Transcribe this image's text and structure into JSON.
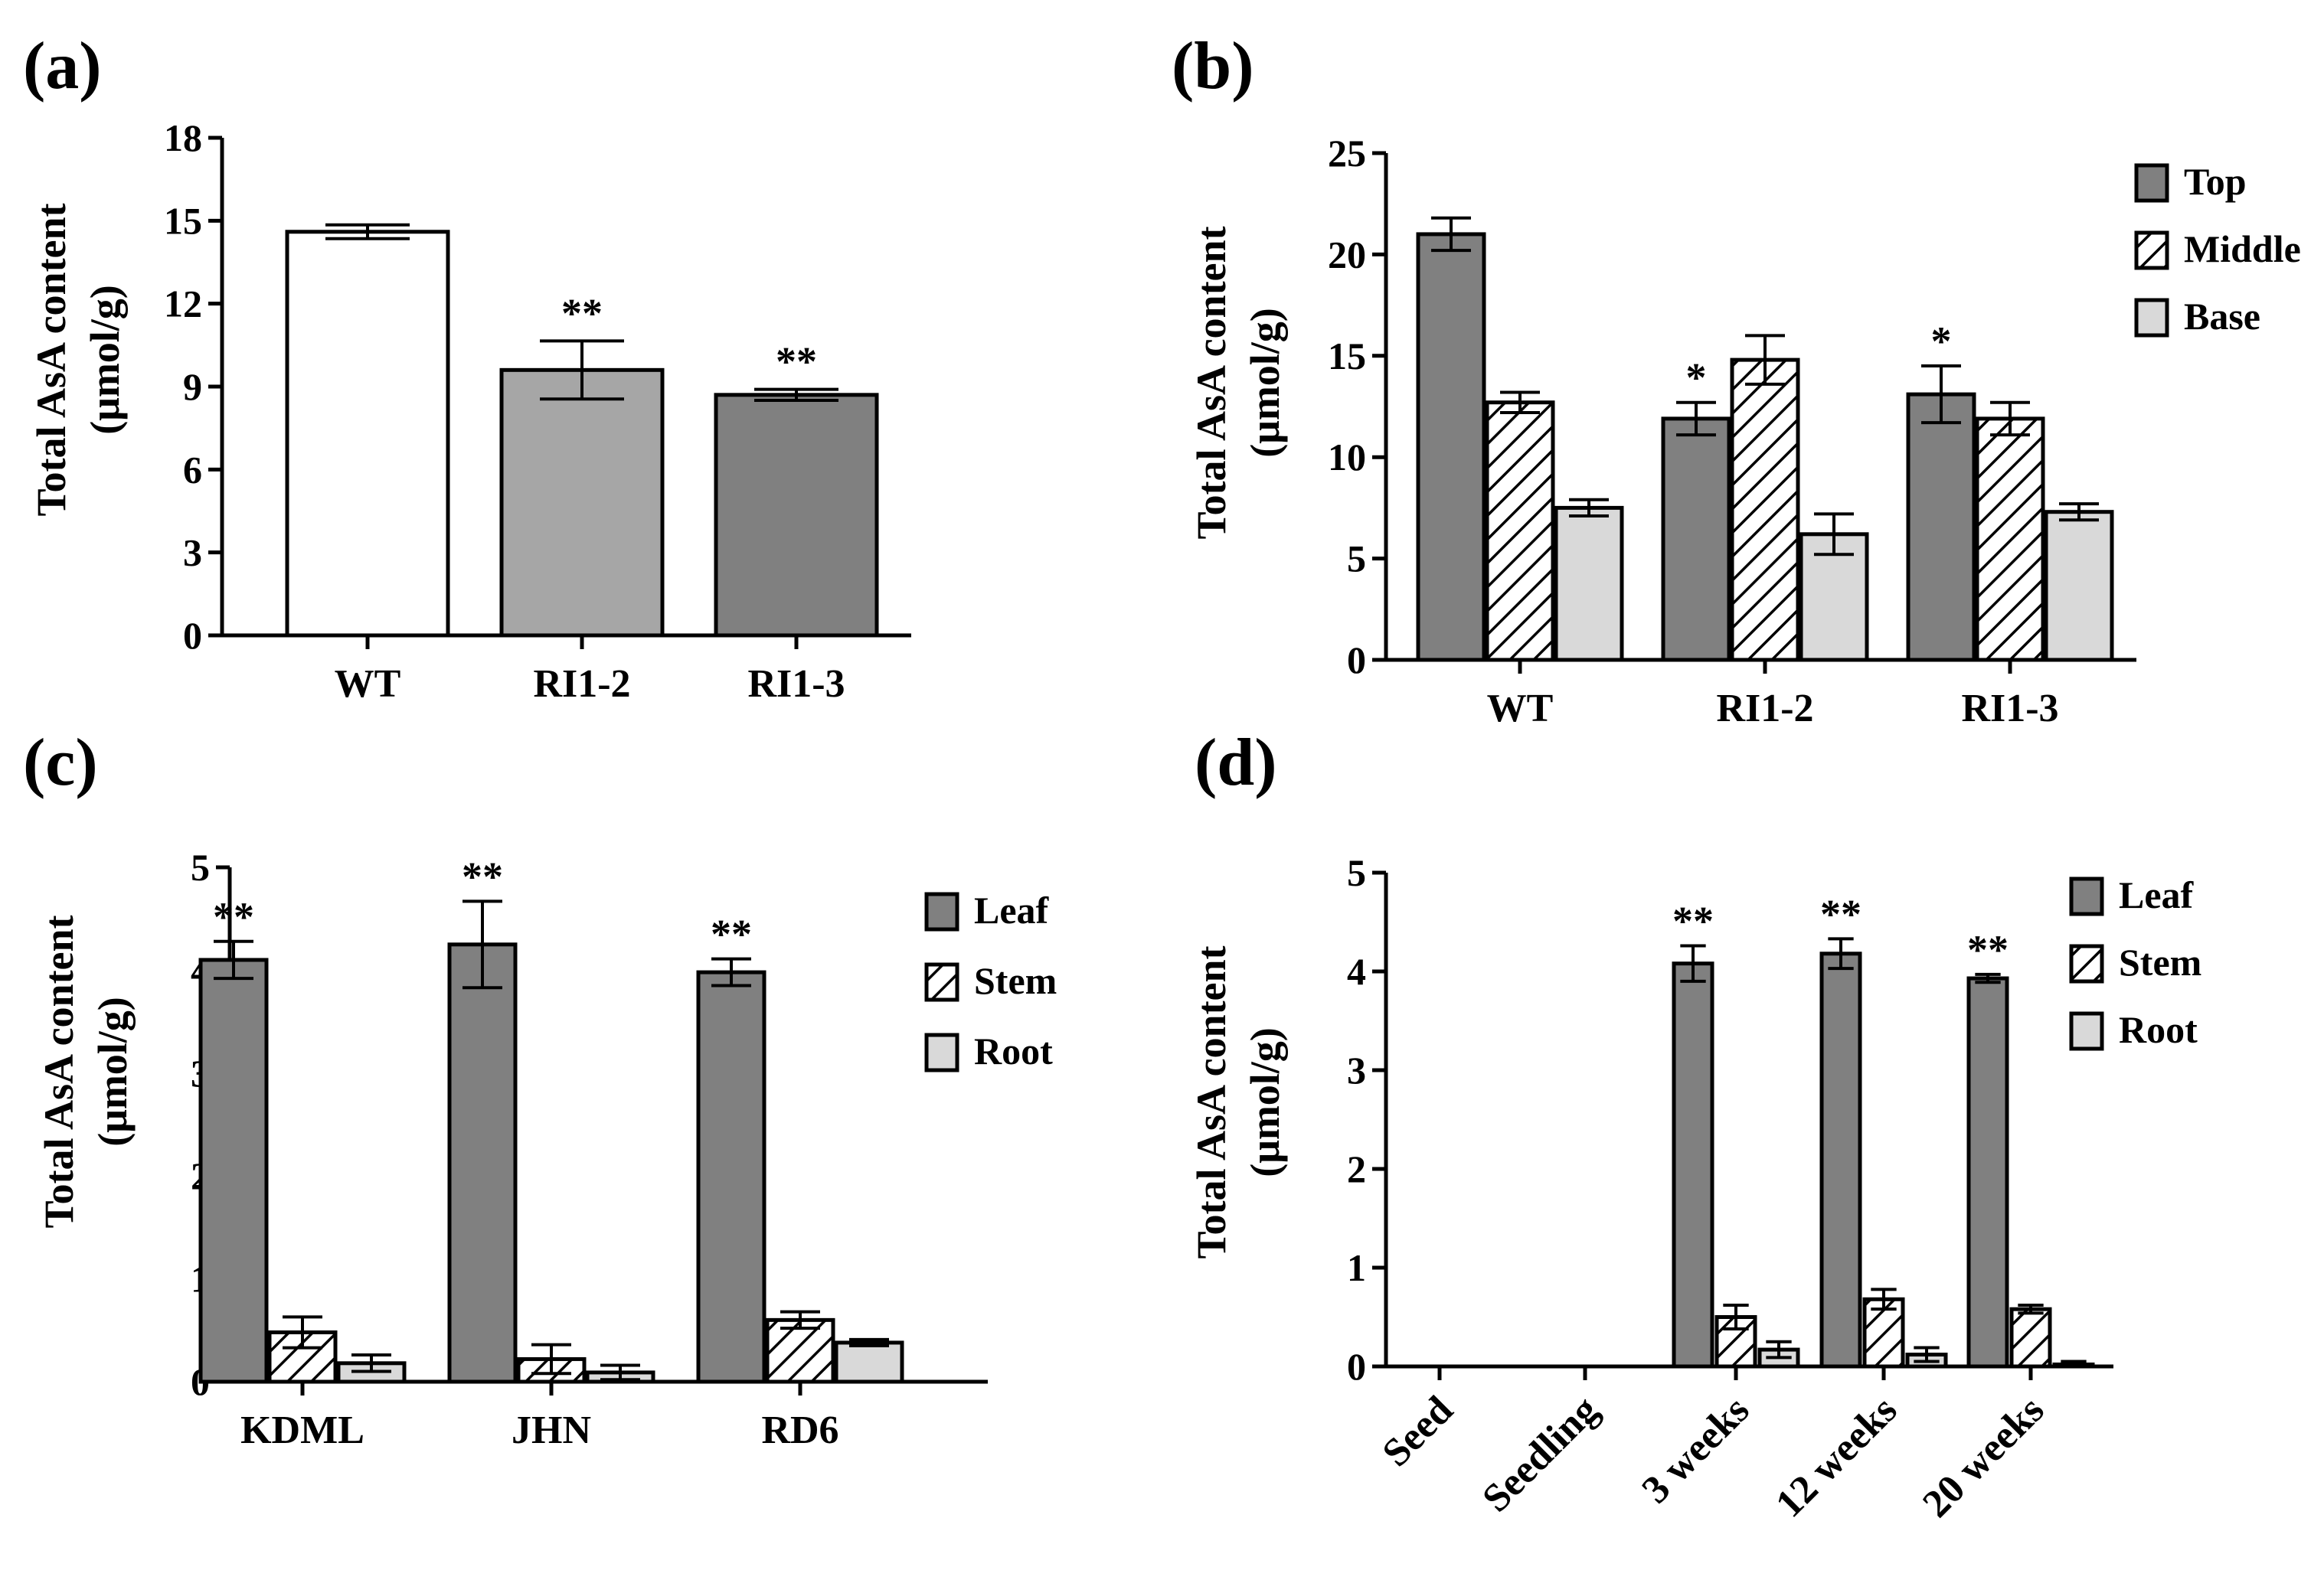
{
  "colors": {
    "white": "#ffffff",
    "light_gray": "#a6a6a6",
    "dark_gray": "#808080",
    "pale_gray": "#d9d9d9",
    "axis": "#000000"
  },
  "chart_data": [
    {
      "panel_label": "(a)",
      "type": "bar",
      "ylabel_line1": "Total AsA content",
      "ylabel_line2": "(μmol/g)",
      "ylim": [
        0,
        18
      ],
      "yticks": [
        0,
        3,
        6,
        9,
        12,
        15,
        18
      ],
      "categories": [
        "WT",
        "RI1-2",
        "RI1-3"
      ],
      "bar_fills": [
        "white",
        "light_gray",
        "dark_gray"
      ],
      "values": [
        14.6,
        9.6,
        8.7
      ],
      "errors": [
        0.25,
        1.05,
        0.2
      ],
      "significance": [
        "",
        "**",
        "**"
      ]
    },
    {
      "panel_label": "(b)",
      "type": "bar",
      "ylabel_line1": "Total AsA content",
      "ylabel_line2": "(μmol/g)",
      "ylim": [
        0,
        25
      ],
      "yticks": [
        0,
        5,
        10,
        15,
        20,
        25
      ],
      "categories": [
        "WT",
        "RI1-2",
        "RI1-3"
      ],
      "legend_placement": "top-right",
      "series": [
        {
          "name": "Top",
          "fill": "dark_gray",
          "pattern": "solid",
          "values": [
            21.0,
            11.9,
            13.1
          ],
          "errors": [
            0.8,
            0.8,
            1.4
          ],
          "significance": [
            "",
            "*",
            "*"
          ]
        },
        {
          "name": "Middle",
          "fill": "white",
          "pattern": "hatch",
          "values": [
            12.7,
            14.8,
            11.9
          ],
          "errors": [
            0.5,
            1.2,
            0.8
          ],
          "significance": [
            "",
            "",
            ""
          ]
        },
        {
          "name": "Base",
          "fill": "pale_gray",
          "pattern": "solid",
          "values": [
            7.5,
            6.2,
            7.3
          ],
          "errors": [
            0.4,
            1.0,
            0.4
          ],
          "significance": [
            "",
            "",
            ""
          ]
        }
      ]
    },
    {
      "panel_label": "(c)",
      "type": "bar",
      "ylabel_line1": "Total AsA content",
      "ylabel_line2": "(μmol/g)",
      "ylim": [
        0,
        5
      ],
      "yticks": [
        0,
        1,
        2,
        3,
        4,
        5
      ],
      "categories": [
        "KDML",
        "JHN",
        "RD6"
      ],
      "legend_placement": "top-right",
      "series": [
        {
          "name": "Leaf",
          "fill": "dark_gray",
          "pattern": "solid",
          "values": [
            4.1,
            4.25,
            3.98
          ],
          "errors": [
            0.18,
            0.42,
            0.13
          ],
          "significance": [
            "**",
            "**",
            "**"
          ]
        },
        {
          "name": "Stem",
          "fill": "white",
          "pattern": "hatch",
          "values": [
            0.48,
            0.22,
            0.6
          ],
          "errors": [
            0.15,
            0.14,
            0.08
          ],
          "significance": [
            "",
            "",
            ""
          ]
        },
        {
          "name": "Root",
          "fill": "pale_gray",
          "pattern": "solid",
          "values": [
            0.18,
            0.09,
            0.38
          ],
          "errors": [
            0.08,
            0.07,
            0.03
          ],
          "significance": [
            "",
            "",
            ""
          ]
        }
      ]
    },
    {
      "panel_label": "(d)",
      "type": "bar",
      "ylabel_line1": "Total AsA content",
      "ylabel_line2": "(μmol/g)",
      "ylim": [
        0,
        5
      ],
      "yticks": [
        0,
        1,
        2,
        3,
        4,
        5
      ],
      "categories": [
        "Seed",
        "Seedling",
        "3 weeks",
        "12 weeks",
        "20 weeks"
      ],
      "legend_placement": "top-right",
      "series": [
        {
          "name": "Leaf",
          "fill": "dark_gray",
          "pattern": "solid",
          "values": [
            0,
            0,
            4.08,
            4.18,
            3.93
          ],
          "errors": [
            0,
            0,
            0.18,
            0.15,
            0.04
          ],
          "significance": [
            "",
            "",
            "**",
            "**",
            "**"
          ]
        },
        {
          "name": "Stem",
          "fill": "white",
          "pattern": "hatch",
          "values": [
            0,
            0,
            0.5,
            0.68,
            0.58
          ],
          "errors": [
            0,
            0,
            0.12,
            0.1,
            0.04
          ],
          "significance": [
            "",
            "",
            "",
            "",
            ""
          ]
        },
        {
          "name": "Root",
          "fill": "pale_gray",
          "pattern": "solid",
          "values": [
            0,
            0,
            0.17,
            0.12,
            0.02
          ],
          "errors": [
            0,
            0,
            0.08,
            0.07,
            0.03
          ],
          "significance": [
            "",
            "",
            "",
            "",
            ""
          ]
        }
      ]
    }
  ]
}
